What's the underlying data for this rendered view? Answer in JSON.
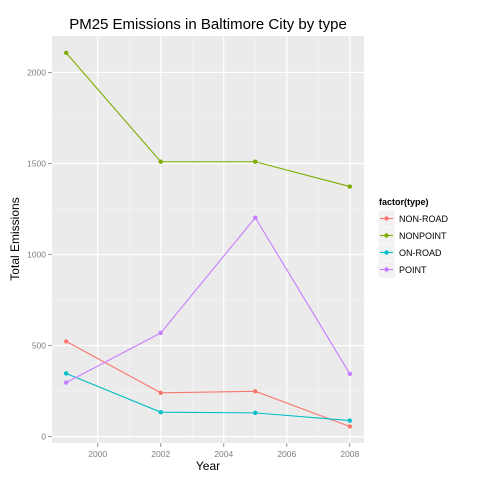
{
  "chart_data": {
    "type": "line",
    "title": "PM25 Emissions in Baltimore City by type",
    "xlabel": "Year",
    "ylabel": "Total Emissions",
    "x": [
      1999,
      2002,
      2005,
      2008
    ],
    "xlim": [
      1998.55,
      2008.45
    ],
    "ylim": [
      -35,
      2200
    ],
    "xticks": [
      2000,
      2002,
      2004,
      2006,
      2008
    ],
    "yticks": [
      0,
      500,
      1000,
      1500,
      2000
    ],
    "grid": true,
    "legend": {
      "title": "factor(type)",
      "placement": "right"
    },
    "series": [
      {
        "name": "NON-ROAD",
        "color": "#F8766D",
        "values": [
          522.9,
          240.8,
          248.9,
          55.8
        ]
      },
      {
        "name": "NONPOINT",
        "color": "#7CAE00",
        "values": [
          2107.6,
          1509.5,
          1509.5,
          1373.2
        ]
      },
      {
        "name": "ON-ROAD",
        "color": "#00BFC4",
        "values": [
          346.8,
          134.3,
          130.4,
          88.3
        ]
      },
      {
        "name": "POINT",
        "color": "#C77CFF",
        "values": [
          296.8,
          569.3,
          1202.5,
          344.98
        ]
      }
    ]
  }
}
